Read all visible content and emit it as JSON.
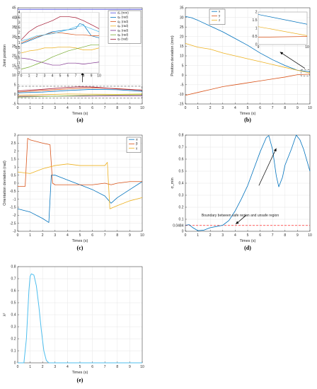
{
  "figure": {
    "panels": [
      "(a)",
      "(b)",
      "(c)",
      "(d)",
      "(e)"
    ]
  },
  "colors": {
    "blue": "#0072BD",
    "orange": "#D95319",
    "yellow": "#EDB120",
    "purple": "#7E2F8E",
    "green": "#77AC30",
    "cyan": "#4DBEEE",
    "red": "#A2142F",
    "mm": "#4A4AE0",
    "dash_red": "#FF2A2A",
    "dash_gray": "#555555"
  },
  "chart_data": [
    {
      "id": "a",
      "panel_label": "(a)",
      "type": "line",
      "xlabel": "Times (s)",
      "ylabel": "Joint position",
      "xlim": [
        0,
        10
      ],
      "ylim": [
        -5,
        45
      ],
      "xticks": [
        0,
        1,
        2,
        3,
        4,
        5,
        6,
        7,
        8,
        9,
        10
      ],
      "yticks": [
        -5,
        0,
        5,
        10,
        15,
        20,
        25,
        30,
        35,
        40,
        45
      ],
      "legend": "top-right inset box",
      "series": [
        {
          "name": "d₁ (mm)",
          "color": "#4A4AE0",
          "x": [
            0,
            10
          ],
          "y": [
            44.2,
            44.2
          ]
        },
        {
          "name": "q₂ (rad)",
          "color": "#0072BD",
          "x": [
            0,
            2,
            4,
            6,
            8,
            10
          ],
          "y": [
            0.8,
            1.2,
            2.0,
            2.6,
            2.4,
            1.6
          ]
        },
        {
          "name": "q₃ (rad)",
          "color": "#D95319",
          "x": [
            0,
            2,
            4,
            6,
            8,
            10
          ],
          "y": [
            1.2,
            2.0,
            2.8,
            3.4,
            3.0,
            2.2
          ]
        },
        {
          "name": "q₄ (rad)",
          "color": "#EDB120",
          "x": [
            0,
            2,
            4,
            6,
            8,
            10
          ],
          "y": [
            -0.6,
            -0.2,
            0.2,
            0.1,
            0.0,
            0.2
          ]
        },
        {
          "name": "q₅ (rad)",
          "color": "#7E2F8E",
          "x": [
            0,
            2,
            4,
            6,
            8,
            10
          ],
          "y": [
            -1.0,
            -1.0,
            -0.9,
            -0.9,
            -0.8,
            -0.8
          ]
        },
        {
          "name": "q₆ (rad)",
          "color": "#77AC30",
          "x": [
            0,
            2,
            4,
            6,
            8,
            10
          ],
          "y": [
            -1.4,
            -1.1,
            -0.8,
            -0.5,
            -0.3,
            -0.2
          ]
        },
        {
          "name": "q₇ (rad)",
          "color": "#A2142F",
          "x": [
            0,
            2,
            4,
            5,
            6,
            7,
            8,
            10
          ],
          "y": [
            1.8,
            2.6,
            3.6,
            3.9,
            3.8,
            3.3,
            2.8,
            2.2
          ]
        }
      ],
      "inset": {
        "xlim": [
          0,
          10
        ],
        "ylim": [
          -2,
          4
        ],
        "xticks": [
          0,
          1,
          2,
          3,
          4,
          5,
          6,
          7,
          8,
          9,
          10
        ],
        "yticks": [
          -2,
          -1.5,
          -1,
          -0.5,
          0,
          0.5,
          1,
          1.5,
          2,
          2.5,
          3,
          3.5,
          4
        ],
        "series": [
          {
            "color": "#0072BD",
            "x": [
              0,
              1,
              2,
              3,
              4,
              5,
              6,
              7,
              7.5,
              8,
              9,
              10
            ],
            "y": [
              0.9,
              1.2,
              1.5,
              1.8,
              2.1,
              2.2,
              2.3,
              2.4,
              2.9,
              2.8,
              1.7,
              1.5
            ]
          },
          {
            "color": "#D95319",
            "x": [
              0,
              1,
              2,
              3,
              4,
              5,
              6,
              7,
              8,
              9,
              10
            ],
            "y": [
              1.0,
              1.3,
              1.6,
              1.8,
              2.0,
              2.0,
              1.9,
              1.8,
              1.8,
              1.7,
              1.7
            ]
          },
          {
            "color": "#EDB120",
            "x": [
              0,
              1,
              2,
              3,
              4,
              5,
              6,
              7,
              8,
              9,
              10
            ],
            "y": [
              0.0,
              0.2,
              0.3,
              0.5,
              0.5,
              0.6,
              0.6,
              0.5,
              0.3,
              0.3,
              0.5
            ]
          },
          {
            "color": "#7E2F8E",
            "x": [
              0,
              1,
              2,
              3,
              4,
              5,
              6,
              7,
              8,
              9,
              10
            ],
            "y": [
              -0.5,
              -0.6,
              -0.8,
              -1.0,
              -1.2,
              -1.2,
              -1.0,
              -1.0,
              -1.1,
              -1.0,
              -0.9
            ]
          },
          {
            "color": "#77AC30",
            "x": [
              0,
              1,
              2,
              3,
              4,
              5,
              6,
              7,
              8,
              9,
              10
            ],
            "y": [
              -1.6,
              -1.4,
              -1.1,
              -0.8,
              -0.4,
              -0.1,
              0.2,
              0.4,
              0.6,
              0.8,
              0.8
            ]
          },
          {
            "color": "#4DBEEE",
            "x": [
              0,
              1,
              2,
              3,
              4,
              5,
              6,
              7,
              8,
              9,
              10
            ],
            "y": [
              1.2,
              1.4,
              1.7,
              1.8,
              1.9,
              2.1,
              2.3,
              2.6,
              2.7,
              2.4,
              2.1
            ]
          },
          {
            "color": "#A2142F",
            "x": [
              0,
              1,
              2,
              3,
              4,
              5,
              6,
              7,
              8,
              9,
              10
            ],
            "y": [
              1.3,
              2.1,
              2.6,
              2.9,
              3.2,
              3.6,
              3.6,
              3.5,
              3.2,
              2.8,
              2.4
            ]
          }
        ]
      }
    },
    {
      "id": "b",
      "panel_label": "(b)",
      "type": "line",
      "xlabel": "Times (s)",
      "ylabel": "Position deviation (mm)",
      "xlim": [
        0,
        10
      ],
      "ylim": [
        -15,
        35
      ],
      "xticks": [
        0,
        1,
        2,
        3,
        4,
        5,
        6,
        7,
        8,
        9,
        10
      ],
      "yticks": [
        -15,
        -10,
        -5,
        0,
        5,
        10,
        15,
        20,
        25,
        30,
        35
      ],
      "legend": "top-left box",
      "series": [
        {
          "name": "x",
          "color": "#0072BD",
          "x": [
            0,
            0.5,
            1,
            2,
            3,
            4,
            5,
            6,
            7,
            8,
            9,
            10
          ],
          "y": [
            30.5,
            29.8,
            28.5,
            25.5,
            22.5,
            19.0,
            15.5,
            11.5,
            8.0,
            5.0,
            2.5,
            1.8
          ]
        },
        {
          "name": "y",
          "color": "#D95319",
          "x": [
            0,
            1,
            2,
            3,
            4,
            5,
            6,
            7,
            8,
            9,
            10
          ],
          "y": [
            -10.5,
            -9.0,
            -7.5,
            -6.0,
            -5.0,
            -4.0,
            -3.0,
            -2.0,
            -1.0,
            0.2,
            0.5
          ]
        },
        {
          "name": "z",
          "color": "#EDB120",
          "x": [
            0,
            1,
            2,
            3,
            4,
            5,
            6,
            7,
            8,
            9,
            10
          ],
          "y": [
            16.5,
            14.5,
            13.5,
            11.5,
            10.0,
            8.5,
            7.0,
            5.5,
            4.0,
            2.5,
            1.1
          ]
        }
      ],
      "inset": {
        "xlim": [
          9,
          10
        ],
        "ylim": [
          0,
          2
        ],
        "xticks": [
          9,
          10
        ],
        "yticks": [
          0,
          0.5,
          1,
          1.5,
          2
        ],
        "series": [
          {
            "color": "#0072BD",
            "x": [
              9,
              10
            ],
            "y": [
              1.85,
              1.25
            ]
          },
          {
            "color": "#EDB120",
            "x": [
              9,
              10
            ],
            "y": [
              1.1,
              0.55
            ]
          },
          {
            "color": "#D95319",
            "x": [
              9,
              10
            ],
            "y": [
              0.45,
              0.5
            ]
          }
        ]
      }
    },
    {
      "id": "c",
      "panel_label": "(c)",
      "type": "line",
      "xlabel": "Times (s)",
      "ylabel": "Orientation deviation (rad)",
      "xlim": [
        0,
        10
      ],
      "ylim": [
        -3,
        3
      ],
      "xticks": [
        0,
        1,
        2,
        3,
        4,
        5,
        6,
        7,
        8,
        9,
        10
      ],
      "yticks": [
        -3,
        -2.5,
        -2,
        -1.5,
        -1,
        -0.5,
        0,
        0.5,
        1,
        1.5,
        2,
        2.5,
        3
      ],
      "legend": "top-right box",
      "series": [
        {
          "name": "α",
          "color": "#0072BD",
          "x": [
            0,
            1,
            2,
            2.5,
            2.7,
            3,
            4,
            5,
            6,
            7,
            7.5,
            8,
            9,
            10
          ],
          "y": [
            -1.6,
            -1.8,
            -2.2,
            -2.45,
            0.5,
            0.5,
            0.2,
            -0.1,
            -0.4,
            -0.8,
            -1.25,
            -0.9,
            -0.4,
            0.1
          ]
        },
        {
          "name": "β",
          "color": "#D95319",
          "x": [
            0,
            0.6,
            0.8,
            1,
            2,
            2.6,
            2.8,
            3,
            4,
            5,
            6,
            7,
            7.5,
            8,
            9,
            10
          ],
          "y": [
            -0.2,
            -0.2,
            2.8,
            2.7,
            2.5,
            2.4,
            0.0,
            -0.1,
            -0.1,
            -0.1,
            -0.1,
            0.0,
            -0.1,
            0.0,
            0.1,
            0.1
          ]
        },
        {
          "name": "γ",
          "color": "#EDB120",
          "x": [
            0,
            1,
            2,
            3,
            4,
            5,
            6,
            7,
            7.2,
            7.4,
            8,
            9,
            10
          ],
          "y": [
            0.7,
            0.6,
            0.9,
            1.1,
            1.2,
            1.1,
            1.1,
            1.1,
            1.3,
            -1.6,
            -1.4,
            -1.1,
            -0.9
          ]
        }
      ]
    },
    {
      "id": "d",
      "panel_label": "(d)",
      "type": "line",
      "xlabel": "Times (s)",
      "ylabel": "σ_min",
      "xlim": [
        0,
        10
      ],
      "ylim": [
        0,
        0.8
      ],
      "xticks": [
        0,
        1,
        2,
        3,
        4,
        5,
        6,
        7,
        8,
        9,
        10
      ],
      "yticks": [
        0,
        0.0484,
        0.1,
        0.2,
        0.3,
        0.4,
        0.5,
        0.6,
        0.7,
        0.8
      ],
      "ytick_labels": [
        "0",
        "0.0484",
        "0.1",
        "0.2",
        "0.3",
        "0.4",
        "0.5",
        "0.6",
        "0.7",
        "0.8"
      ],
      "threshold": 0.0484,
      "annotation": "Boundary between safe region and unsafe region",
      "series": [
        {
          "color": "#0072BD",
          "x": [
            0,
            0.3,
            0.6,
            1,
            1.5,
            2,
            2.5,
            3,
            3.5,
            4,
            4.5,
            5,
            5.5,
            6,
            6.5,
            6.7,
            7,
            7.3,
            7.5,
            7.8,
            8,
            8.5,
            8.9,
            9.2,
            9.5,
            10
          ],
          "y": [
            0.05,
            0.055,
            0.03,
            0.005,
            0.01,
            0.03,
            0.04,
            0.05,
            0.09,
            0.17,
            0.27,
            0.38,
            0.52,
            0.66,
            0.78,
            0.795,
            0.68,
            0.46,
            0.37,
            0.45,
            0.55,
            0.68,
            0.8,
            0.76,
            0.68,
            0.5
          ]
        }
      ]
    },
    {
      "id": "e",
      "panel_label": "(e)",
      "type": "line",
      "xlabel": "Times (s)",
      "ylabel": "λ²",
      "xlim": [
        0,
        10
      ],
      "ylim": [
        0,
        0.8
      ],
      "xticks": [
        0,
        1,
        2,
        3,
        4,
        5,
        6,
        7,
        8,
        9,
        10
      ],
      "yticks": [
        0,
        0.1,
        0.2,
        0.3,
        0.4,
        0.5,
        0.6,
        0.7,
        0.8
      ],
      "series": [
        {
          "color": "#4DBEEE",
          "x": [
            0,
            0.5,
            0.7,
            0.9,
            1.0,
            1.1,
            1.3,
            1.5,
            1.7,
            1.9,
            2.1,
            2.3,
            2.5,
            3,
            10
          ],
          "y": [
            0,
            0,
            0.2,
            0.6,
            0.72,
            0.74,
            0.73,
            0.64,
            0.47,
            0.27,
            0.1,
            0.02,
            0,
            0,
            0
          ]
        }
      ]
    }
  ]
}
